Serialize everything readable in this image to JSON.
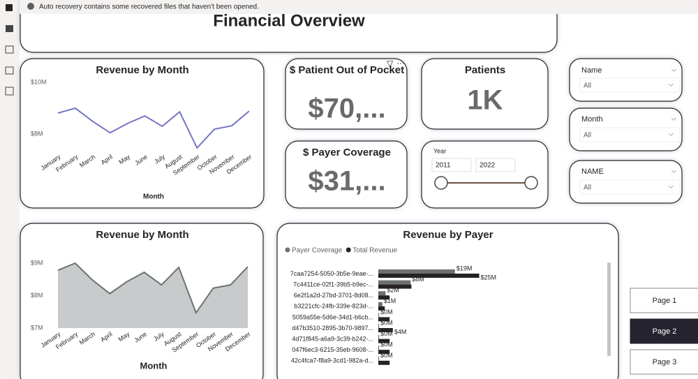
{
  "banner": "Auto recovery contains some recovered files that haven't been opened.",
  "title": "Financial Overview",
  "cards": [
    {
      "label": "$ Patient Out of Pocket",
      "value": "$70,..."
    },
    {
      "label": "Patients",
      "value": "1K"
    },
    {
      "label": "$ Payer Coverage",
      "value": "$31,..."
    }
  ],
  "year_slicer": {
    "label": "Year",
    "start": "2011",
    "end": "2022"
  },
  "slicers": [
    {
      "label": "Name",
      "value": "All"
    },
    {
      "label": "Month",
      "value": "All"
    },
    {
      "label": "NAME",
      "value": "All"
    }
  ],
  "pages": [
    "Page 1",
    "Page 2",
    "Page 3"
  ],
  "chart_data": [
    {
      "type": "line",
      "title": "Revenue by Month",
      "x_label": "Month",
      "color": "#7474c4",
      "categories": [
        "January",
        "February",
        "March",
        "April",
        "May",
        "June",
        "July",
        "August",
        "September",
        "October",
        "November",
        "December"
      ],
      "values": [
        8810000,
        9000000,
        8490000,
        8050000,
        8410000,
        8700000,
        8300000,
        8860000,
        7460000,
        8190000,
        8320000,
        8890000
      ],
      "ylim": [
        7380000,
        10000000
      ],
      "yticks": [
        {
          "value": 8000000,
          "label": "$8M"
        },
        {
          "value": 10000000,
          "label": "$10M"
        }
      ]
    },
    {
      "type": "area",
      "title": "Revenue by Month",
      "x_label": "Month",
      "color": "#c8cacb",
      "line_color": "#6b7372",
      "categories": [
        "January",
        "February",
        "March",
        "April",
        "May",
        "June",
        "July",
        "August",
        "September",
        "October",
        "November",
        "December"
      ],
      "values": [
        8780000,
        9000000,
        8480000,
        8060000,
        8430000,
        8720000,
        8330000,
        8870000,
        7470000,
        8230000,
        8330000,
        8890000
      ],
      "ylim": [
        7000000,
        9000000
      ],
      "yticks": [
        {
          "value": 7000000,
          "label": "$7M"
        },
        {
          "value": 8000000,
          "label": "$8M"
        },
        {
          "value": 9000000,
          "label": "$9M"
        }
      ]
    },
    {
      "type": "bar",
      "orientation": "horizontal",
      "title": "Revenue by Payer",
      "categories": [
        "7caa7254-5050-3b5e-9eae-...",
        "7c4411ce-02f1-39b5-b9ec-...",
        "6e2f1a2d-27bd-3701-8d08...",
        "b3221cfc-24fb-339e-823d-...",
        "5059a55e-5d6e-34d1-b6cb...",
        "d47b3510-2895-3b70-9897...",
        "4d71f845-a6a9-3c39-b242-...",
        "047f6ec3-6215-35eb-9608-...",
        "42c4fca7-f8a9-3cd1-982a-d..."
      ],
      "series": [
        {
          "name": "Payer Coverage",
          "color": "#6c7070",
          "values": [
            19000000,
            8000000,
            1800000,
            1000000,
            200000,
            200000,
            200000,
            200000,
            200000
          ],
          "value_labels": [
            "$19M",
            "$8M",
            "$2M",
            "$1M",
            "$0M",
            "$0M",
            "$0M",
            "$0M",
            "$0M"
          ]
        },
        {
          "name": "Total Revenue",
          "color": "#252423",
          "values": [
            25000000,
            8200000,
            2800000,
            1600000,
            2800000,
            3600000,
            2800000,
            2800000,
            2800000
          ],
          "value_labels": [
            "$25M",
            null,
            null,
            null,
            null,
            "$4M",
            null,
            null,
            null
          ]
        }
      ],
      "xlim": [
        0,
        55000000
      ]
    }
  ]
}
